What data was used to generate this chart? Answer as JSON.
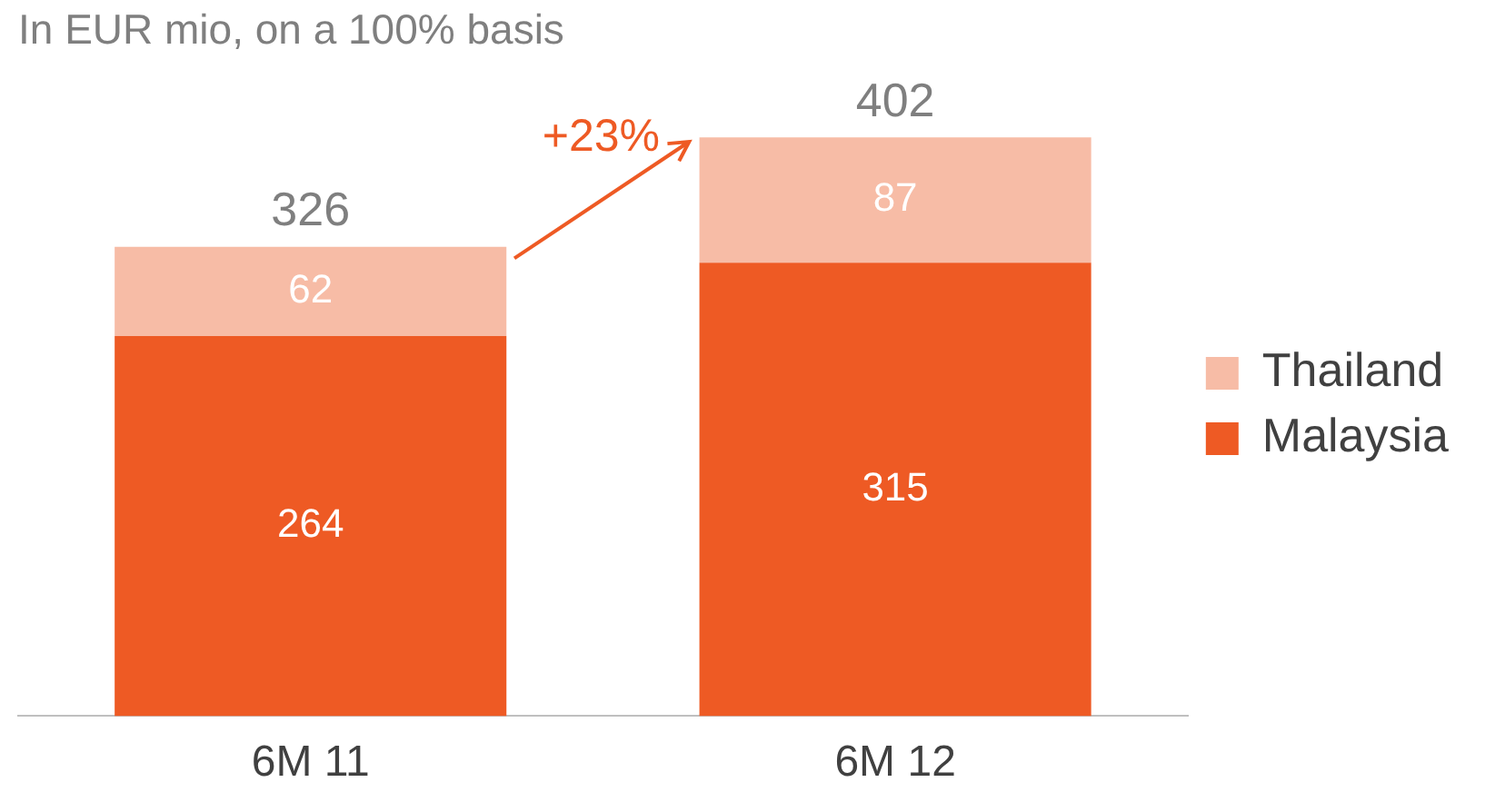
{
  "chart_data": {
    "type": "bar",
    "title": "In EUR mio, on a 100% basis",
    "categories": [
      "6M 11",
      "6M 12"
    ],
    "series": [
      {
        "name": "Malaysia",
        "color": "#ee5a24",
        "values": [
          264,
          315
        ]
      },
      {
        "name": "Thailand",
        "color": "#f7bca6",
        "values": [
          62,
          87
        ]
      }
    ],
    "stacked": true,
    "data_labels": true,
    "totals": [
      "326",
      "402"
    ],
    "legend": "right",
    "tick_labels": "x",
    "annotations": [
      "+23%"
    ]
  }
}
